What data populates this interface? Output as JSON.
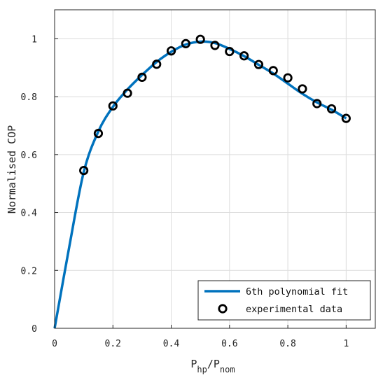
{
  "chart_data": {
    "type": "line",
    "xlabel": {
      "main": "P",
      "sub1": "hp",
      "slash": "/P",
      "sub2": "nom"
    },
    "ylabel": "Normalised COP",
    "xlim": [
      0,
      1.1
    ],
    "ylim": [
      0,
      1.1
    ],
    "x_ticks": [
      0,
      0.2,
      0.4,
      0.6,
      0.8,
      1
    ],
    "y_ticks": [
      0,
      0.2,
      0.4,
      0.6,
      0.8,
      1
    ],
    "x_tick_labels": [
      "0",
      "0.2",
      "0.4",
      "0.6",
      "0.8",
      "1"
    ],
    "y_tick_labels": [
      "0",
      "0.2",
      "0.4",
      "0.6",
      "0.8",
      "1"
    ],
    "grid": true,
    "legend_position": "bottom-right",
    "series": [
      {
        "name": "6th polynomial fit",
        "kind": "line",
        "color": "#0072BD",
        "x": [
          0,
          0.05,
          0.1,
          0.15,
          0.2,
          0.25,
          0.3,
          0.35,
          0.4,
          0.45,
          0.5,
          0.55,
          0.6,
          0.65,
          0.7,
          0.75,
          0.8,
          0.85,
          0.9,
          0.95,
          1.0
        ],
        "y": [
          0,
          0.28,
          0.54,
          0.68,
          0.765,
          0.825,
          0.875,
          0.92,
          0.955,
          0.98,
          0.99,
          0.985,
          0.965,
          0.94,
          0.91,
          0.88,
          0.845,
          0.81,
          0.78,
          0.755,
          0.725
        ]
      },
      {
        "name": "experimental data",
        "kind": "marker",
        "marker": "circle",
        "color": "#000000",
        "x": [
          0.1,
          0.15,
          0.2,
          0.25,
          0.3,
          0.35,
          0.4,
          0.45,
          0.5,
          0.55,
          0.6,
          0.65,
          0.7,
          0.75,
          0.8,
          0.85,
          0.9,
          0.95,
          1.0
        ],
        "y": [
          0.545,
          0.673,
          0.768,
          0.812,
          0.867,
          0.912,
          0.958,
          0.983,
          0.998,
          0.977,
          0.956,
          0.941,
          0.911,
          0.89,
          0.865,
          0.827,
          0.776,
          0.758,
          0.725
        ]
      }
    ]
  }
}
